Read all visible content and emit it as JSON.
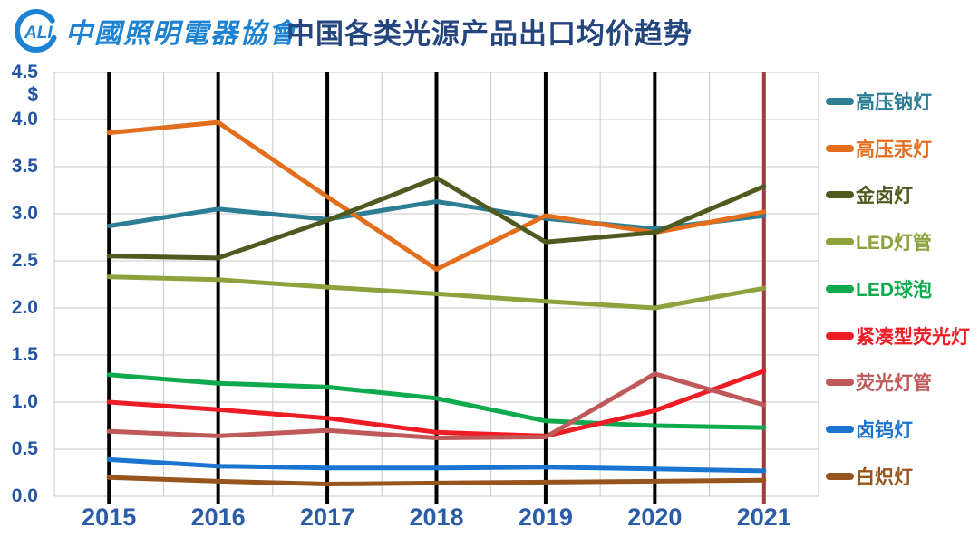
{
  "header": {
    "logo": {
      "acronym": "ALI",
      "org_name": "中國照明電器協會"
    },
    "title": "中国各类光源产品出口均价趋势"
  },
  "chart_data": {
    "type": "line",
    "title": "中国各类光源产品出口均价趋势",
    "xlabel": "",
    "ylabel": "$",
    "currency_label": "$",
    "x": [
      "2015",
      "2016",
      "2017",
      "2018",
      "2019",
      "2020",
      "2021"
    ],
    "ylim": [
      0,
      4.5
    ],
    "ytick_step": 0.5,
    "yticks": [
      "4.5",
      "4.0",
      "3.5",
      "3.0",
      "2.5",
      "2.0",
      "1.5",
      "1.0",
      "0.5",
      "0.0"
    ],
    "grid": true,
    "legend_position": "right",
    "annotations": {
      "year_gridline_color": "#000000",
      "current_year_line_color": "#9C3D3D",
      "current_year": "2021",
      "grid_color": "#C9C9C9"
    },
    "series": [
      {
        "name": "高压钠灯",
        "color": "#2C7E95",
        "values": [
          2.87,
          3.05,
          2.94,
          3.13,
          2.95,
          2.84,
          2.98
        ]
      },
      {
        "name": "高压汞灯",
        "color": "#E36F1E",
        "values": [
          3.86,
          3.97,
          3.18,
          2.41,
          2.98,
          2.8,
          3.02
        ]
      },
      {
        "name": "金卤灯",
        "color": "#4E5A20",
        "values": [
          2.55,
          2.53,
          2.93,
          3.38,
          2.7,
          2.8,
          3.29
        ]
      },
      {
        "name": "LED灯管",
        "color": "#8DA23D",
        "values": [
          2.33,
          2.3,
          2.22,
          2.15,
          2.07,
          2.0,
          2.21
        ]
      },
      {
        "name": "LED球泡",
        "color": "#0FA94E",
        "values": [
          1.29,
          1.2,
          1.16,
          1.04,
          0.8,
          0.75,
          0.73
        ]
      },
      {
        "name": "紧凑型荧光灯",
        "color": "#EE1C25",
        "values": [
          1.0,
          0.92,
          0.83,
          0.68,
          0.64,
          0.91,
          1.33
        ]
      },
      {
        "name": "荧光灯管",
        "color": "#C05A5A",
        "values": [
          0.69,
          0.64,
          0.7,
          0.62,
          0.63,
          1.3,
          0.97
        ]
      },
      {
        "name": "卤钨灯",
        "color": "#1B75D0",
        "values": [
          0.39,
          0.32,
          0.3,
          0.3,
          0.31,
          0.29,
          0.27
        ]
      },
      {
        "name": "白炽灯",
        "color": "#97551D",
        "values": [
          0.2,
          0.16,
          0.13,
          0.14,
          0.15,
          0.16,
          0.17
        ]
      }
    ]
  }
}
